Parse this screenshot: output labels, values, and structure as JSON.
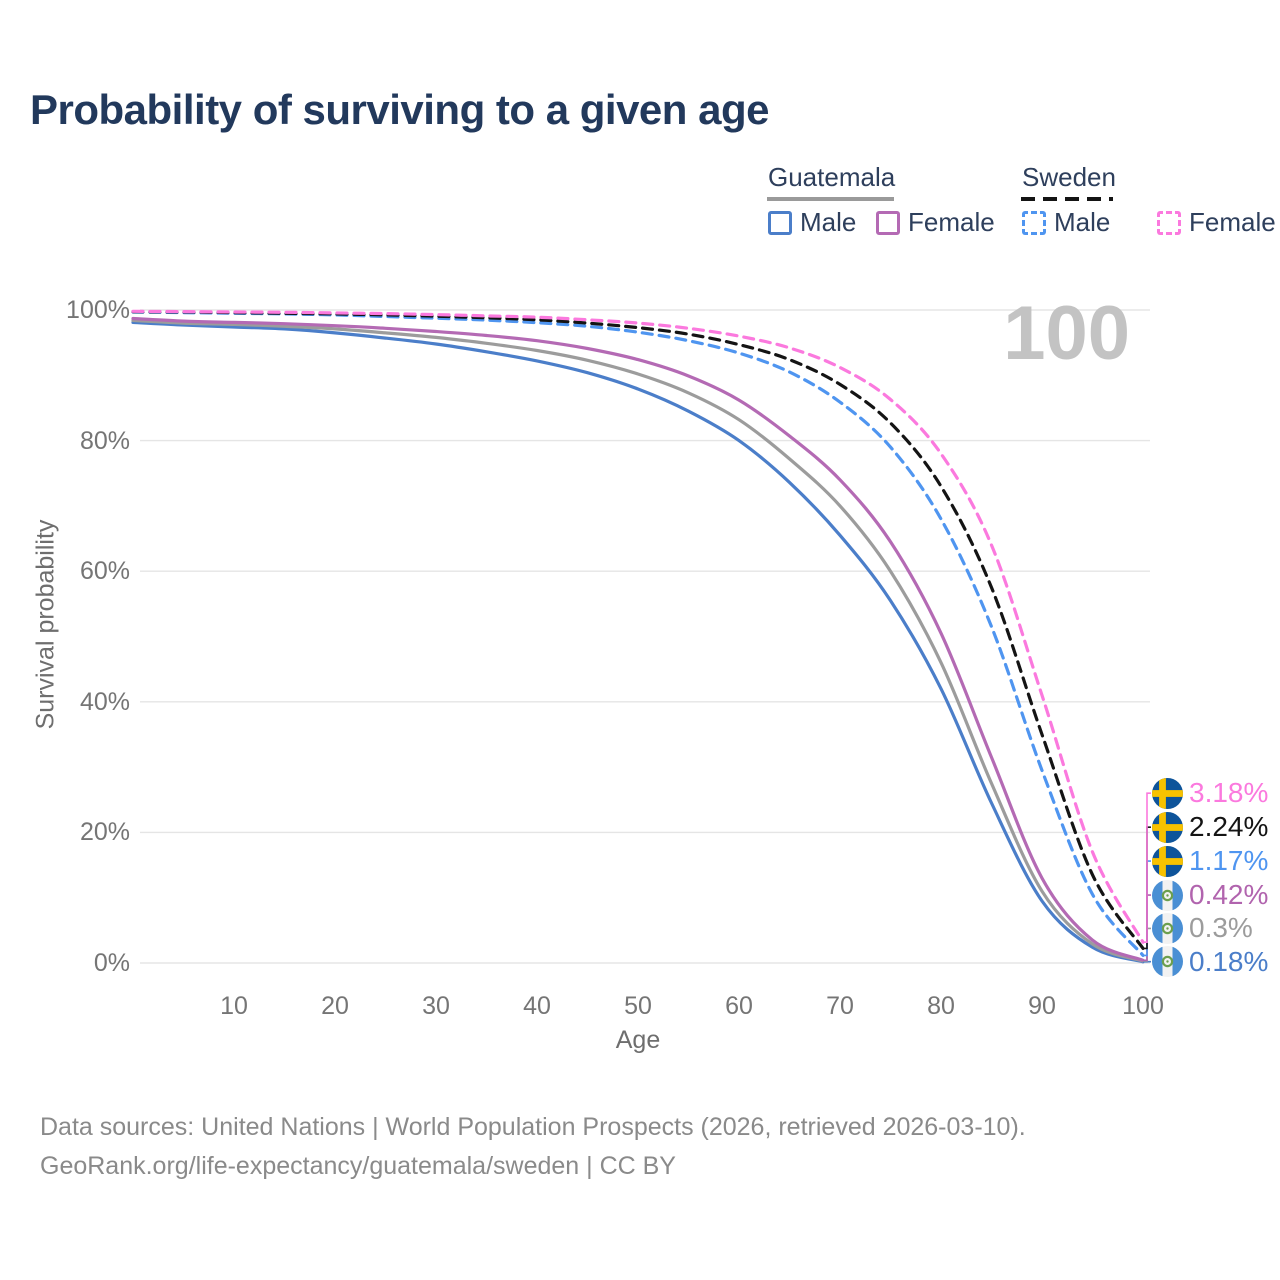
{
  "title": "Probability of surviving to a given age",
  "watermark_age": "100",
  "legend": {
    "groups": [
      {
        "country": "Guatemala",
        "line_style": "solid",
        "line_color": "#9a9a9a",
        "items": [
          {
            "label": "Male",
            "color": "#4b7ec9",
            "style": "solid"
          },
          {
            "label": "Female",
            "color": "#b46ab4",
            "style": "solid"
          }
        ]
      },
      {
        "country": "Sweden",
        "line_style": "dashed",
        "line_color": "#141414",
        "items": [
          {
            "label": "Male",
            "color": "#4f95f0",
            "style": "dashed"
          },
          {
            "label": "Female",
            "color": "#fb79de",
            "style": "dashed"
          }
        ]
      }
    ]
  },
  "axes": {
    "y": {
      "title": "Survival probability",
      "ticks": [
        {
          "v": 0,
          "label": "0%"
        },
        {
          "v": 20,
          "label": "20%"
        },
        {
          "v": 40,
          "label": "40%"
        },
        {
          "v": 60,
          "label": "60%"
        },
        {
          "v": 80,
          "label": "80%"
        },
        {
          "v": 100,
          "label": "100%"
        }
      ]
    },
    "x": {
      "title": "Age",
      "ticks": [
        {
          "v": 10,
          "label": "10"
        },
        {
          "v": 20,
          "label": "20"
        },
        {
          "v": 30,
          "label": "30"
        },
        {
          "v": 40,
          "label": "40"
        },
        {
          "v": 50,
          "label": "50"
        },
        {
          "v": 60,
          "label": "60"
        },
        {
          "v": 70,
          "label": "70"
        },
        {
          "v": 80,
          "label": "80"
        },
        {
          "v": 90,
          "label": "90"
        },
        {
          "v": 100,
          "label": "100"
        }
      ]
    }
  },
  "chart_data": {
    "type": "line",
    "title": "Probability of surviving to a given age",
    "xlabel": "Age",
    "ylabel": "Survival probability",
    "xlim": [
      0,
      100
    ],
    "ylim": [
      0,
      100
    ],
    "grid": "horizontal-only",
    "x": [
      0,
      5,
      10,
      15,
      20,
      25,
      30,
      35,
      40,
      45,
      50,
      55,
      60,
      65,
      70,
      75,
      80,
      85,
      90,
      95,
      100
    ],
    "series": [
      {
        "name": "Guatemala Male",
        "country": "Guatemala",
        "sex": "male",
        "color": "#4b7ec9",
        "dashed": false,
        "values": [
          98.1,
          97.7,
          97.4,
          97.1,
          96.5,
          95.7,
          94.8,
          93.6,
          92.2,
          90.4,
          87.9,
          84.5,
          80.0,
          73.6,
          65.5,
          55.5,
          42.0,
          24.5,
          9.5,
          2.4,
          0.18
        ],
        "end_label": {
          "text": "0.18%",
          "color": "#4b7ec9",
          "flag": "guatemala",
          "label_y_pct": 0.2
        }
      },
      {
        "name": "Guatemala (both sexes)",
        "country": "Guatemala",
        "sex": "total",
        "color": "#9c9c9c",
        "dashed": false,
        "values": [
          98.4,
          98.0,
          97.8,
          97.5,
          97.1,
          96.5,
          95.8,
          94.9,
          93.8,
          92.3,
          90.2,
          87.3,
          83.2,
          77.2,
          70.0,
          60.0,
          46.0,
          27.5,
          11.0,
          2.9,
          0.3
        ],
        "end_label": {
          "text": "0.3%",
          "color": "#9c9c9c",
          "flag": "guatemala",
          "label_y_pct": 5.3
        }
      },
      {
        "name": "Guatemala Female",
        "country": "Guatemala",
        "sex": "female",
        "color": "#b46ab4",
        "dashed": false,
        "values": [
          98.7,
          98.3,
          98.1,
          97.9,
          97.6,
          97.2,
          96.7,
          96.1,
          95.3,
          94.1,
          92.4,
          89.9,
          86.2,
          80.7,
          74.0,
          64.5,
          50.5,
          31.5,
          13.0,
          3.5,
          0.42
        ],
        "end_label": {
          "text": "0.42%",
          "color": "#b164ae",
          "flag": "guatemala",
          "label_y_pct": 10.4
        }
      },
      {
        "name": "Sweden Male",
        "country": "Sweden",
        "sex": "male",
        "color": "#4f95f0",
        "dashed": true,
        "values": [
          99.7,
          99.6,
          99.5,
          99.4,
          99.25,
          99.0,
          98.75,
          98.45,
          98.05,
          97.5,
          96.6,
          95.3,
          93.4,
          90.5,
          85.9,
          79.0,
          68.0,
          51.5,
          29.5,
          10.5,
          1.17
        ],
        "end_label": {
          "text": "1.17%",
          "color": "#4f95f0",
          "flag": "sweden",
          "label_y_pct": 15.6
        }
      },
      {
        "name": "Sweden (both sexes)",
        "country": "Sweden",
        "sex": "total",
        "color": "#141414",
        "dashed": true,
        "values": [
          99.75,
          99.7,
          99.6,
          99.5,
          99.4,
          99.25,
          99.05,
          98.8,
          98.5,
          98.0,
          97.3,
          96.3,
          94.7,
          92.4,
          88.6,
          82.7,
          73.0,
          57.5,
          35.0,
          13.5,
          2.24
        ],
        "end_label": {
          "text": "2.24%",
          "color": "#141414",
          "flag": "sweden",
          "label_y_pct": 20.8
        }
      },
      {
        "name": "Sweden Female",
        "country": "Sweden",
        "sex": "female",
        "color": "#fb79de",
        "dashed": true,
        "values": [
          99.8,
          99.75,
          99.7,
          99.65,
          99.55,
          99.45,
          99.3,
          99.1,
          98.9,
          98.5,
          98.0,
          97.2,
          96.0,
          94.2,
          91.2,
          86.3,
          78.0,
          64.0,
          41.0,
          17.0,
          3.18
        ],
        "end_label": {
          "text": "3.18%",
          "color": "#fb79de",
          "flag": "sweden",
          "label_y_pct": 26.0
        }
      }
    ]
  },
  "footer": {
    "line1": "Data sources: United Nations | World Population Prospects (2026, retrieved 2026-03-10).",
    "line2": "GeoRank.org/life-expectancy/guatemala/sweden | CC BY"
  },
  "colors": {
    "background": "#ffffff",
    "title_text": "#22395c",
    "legend_text": "#2e3f5c",
    "axis_text": "#757575",
    "grid": "#e5e5e5",
    "footer_text": "#8a8a8a",
    "watermark": "#c3c3c3",
    "sweden_flag_blue": "#0e549a",
    "sweden_flag_yellow": "#f8c200",
    "guatemala_flag_blue": "#4a8fd4"
  }
}
